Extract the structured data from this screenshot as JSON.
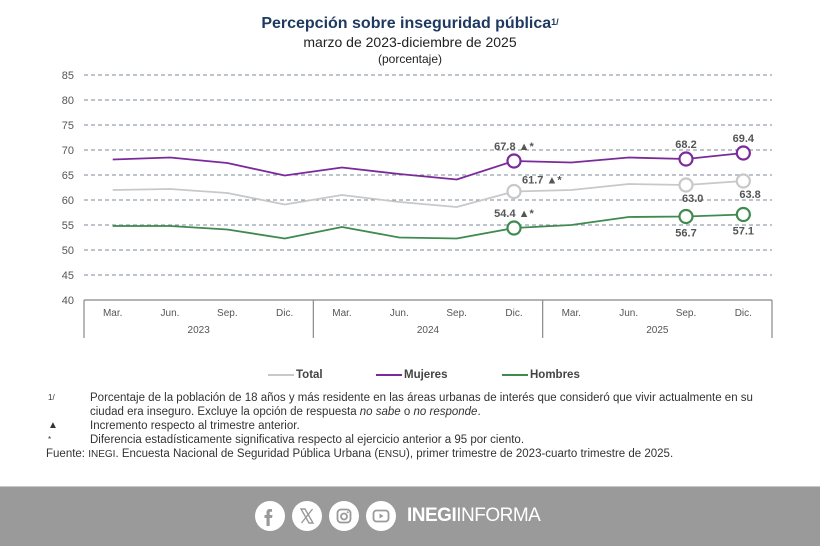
{
  "chart_data": {
    "type": "line",
    "title": "Percepción sobre inseguridad pública",
    "title_footnote": "1/",
    "subtitle": "marzo de 2023-diciembre de 2025",
    "unit_label": "(porcentaje)",
    "xlabel": "",
    "ylabel": "",
    "ylim": [
      40,
      85
    ],
    "yticks": [
      40,
      45,
      50,
      55,
      60,
      65,
      70,
      75,
      80,
      85
    ],
    "grid": true,
    "x": [
      "Mar.",
      "Jun.",
      "Sep.",
      "Dic.",
      "Mar.",
      "Jun.",
      "Sep.",
      "Dic.",
      "Mar.",
      "Jun.",
      "Sep.",
      "Dic."
    ],
    "year_groups": [
      {
        "label": "2023",
        "span": 4
      },
      {
        "label": "2024",
        "span": 4
      },
      {
        "label": "2025",
        "span": 4
      }
    ],
    "series": [
      {
        "name": "Total",
        "color": "#c8c8c8",
        "values": [
          62.0,
          62.2,
          61.4,
          59.1,
          61.0,
          59.6,
          58.6,
          61.7,
          62.0,
          63.2,
          63.0,
          63.8
        ],
        "labels": [
          {
            "index": 7,
            "text": "61.7",
            "marker": "▲*",
            "pos": "above-right"
          },
          {
            "index": 10,
            "text": "63.0",
            "marker": "",
            "pos": "below-right"
          },
          {
            "index": 11,
            "text": "63.8",
            "marker": "",
            "pos": "below-right"
          }
        ],
        "circles": [
          7,
          10,
          11
        ]
      },
      {
        "name": "Mujeres",
        "color": "#7b2a9b",
        "values": [
          68.1,
          68.5,
          67.4,
          64.9,
          66.5,
          65.2,
          64.1,
          67.8,
          67.5,
          68.5,
          68.2,
          69.4
        ],
        "labels": [
          {
            "index": 7,
            "text": "67.8",
            "marker": "▲*",
            "pos": "above"
          },
          {
            "index": 10,
            "text": "68.2",
            "marker": "",
            "pos": "above"
          },
          {
            "index": 11,
            "text": "69.4",
            "marker": "",
            "pos": "above"
          }
        ],
        "circles": [
          7,
          10,
          11
        ]
      },
      {
        "name": "Hombres",
        "color": "#3f8a4f",
        "values": [
          54.8,
          54.8,
          54.1,
          52.3,
          54.6,
          52.5,
          52.3,
          54.4,
          55.0,
          56.6,
          56.7,
          57.1
        ],
        "labels": [
          {
            "index": 7,
            "text": "54.4",
            "marker": "▲*",
            "pos": "above"
          },
          {
            "index": 10,
            "text": "56.7",
            "marker": "",
            "pos": "below"
          },
          {
            "index": 11,
            "text": "57.1",
            "marker": "",
            "pos": "below"
          }
        ],
        "circles": [
          7,
          10,
          11
        ]
      }
    ],
    "legend": [
      "Total",
      "Mujeres",
      "Hombres"
    ],
    "legend_position": "bottom-center"
  },
  "notes": [
    {
      "mark": "1/",
      "text_parts": [
        {
          "t": "Porcentaje de la población de 18 años y más residente en las áreas urbanas de interés que consideró que vivir actualmente en su ciudad era inseguro. Excluye la opción de respuesta ",
          "i": false
        },
        {
          "t": "no sabe",
          "i": true
        },
        {
          "t": " o ",
          "i": false
        },
        {
          "t": "no responde",
          "i": true
        },
        {
          "t": ".",
          "i": false
        }
      ]
    },
    {
      "mark": "▲",
      "text": "Incremento respecto al trimestre anterior."
    },
    {
      "mark": "*",
      "text": "Diferencia estadísticamente significativa respecto al ejercicio anterior a 95 por ciento."
    }
  ],
  "source": {
    "label": "Fuente:",
    "org": "INEGI",
    "text_a": ". Encuesta Nacional de Seguridad Pública Urbana (",
    "abbr": "ENSU",
    "text_b": "), primer trimestre de 2023-cuarto trimestre de 2025."
  },
  "footer": {
    "icons": [
      "facebook-icon",
      "x-icon",
      "instagram-icon",
      "youtube-icon"
    ],
    "brand_bold": "INEGI",
    "brand_light": "INFORMA"
  }
}
